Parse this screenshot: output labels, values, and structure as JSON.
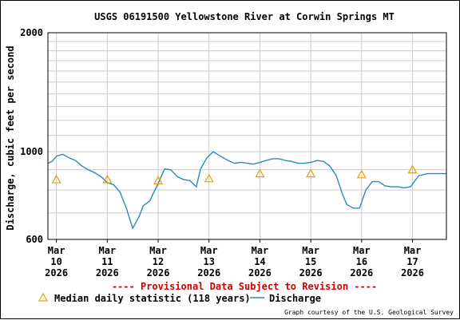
{
  "chart_data": {
    "type": "line",
    "title": "USGS 06191500 Yellowstone River at Corwin Springs MT",
    "ylabel": "Discharge, cubic feet per second",
    "xlabel": "",
    "y_scale": "log",
    "ylim": [
      600,
      2000
    ],
    "y_tick_labels": [
      "2000",
      "1000",
      "600"
    ],
    "x_tick_labels": [
      {
        "day": "Mar",
        "num": "10",
        "year": "2026"
      },
      {
        "day": "Mar",
        "num": "11",
        "year": "2026"
      },
      {
        "day": "Mar",
        "num": "12",
        "year": "2026"
      },
      {
        "day": "Mar",
        "num": "13",
        "year": "2026"
      },
      {
        "day": "Mar",
        "num": "14",
        "year": "2026"
      },
      {
        "day": "Mar",
        "num": "15",
        "year": "2026"
      },
      {
        "day": "Mar",
        "num": "16",
        "year": "2026"
      },
      {
        "day": "Mar",
        "num": "17",
        "year": "2026"
      }
    ],
    "xlim": [
      "2026-03-09T20:00",
      "2026-03-17T16:00"
    ],
    "grid": true,
    "series": [
      {
        "name": "Discharge",
        "color": "#2a88c0",
        "x": [
          "2026-03-09T20:00",
          "2026-03-09T22:00",
          "2026-03-10T00:00",
          "2026-03-10T03:00",
          "2026-03-10T06:00",
          "2026-03-10T09:00",
          "2026-03-10T12:00",
          "2026-03-10T15:00",
          "2026-03-10T18:00",
          "2026-03-10T21:00",
          "2026-03-11T00:00",
          "2026-03-11T03:00",
          "2026-03-11T06:00",
          "2026-03-11T09:00",
          "2026-03-11T12:00",
          "2026-03-11T15:00",
          "2026-03-11T17:00",
          "2026-03-11T20:00",
          "2026-03-11T22:00",
          "2026-03-12T00:00",
          "2026-03-12T03:00",
          "2026-03-12T06:00",
          "2026-03-12T09:00",
          "2026-03-12T12:00",
          "2026-03-12T15:00",
          "2026-03-12T18:00",
          "2026-03-12T20:00",
          "2026-03-12T23:00",
          "2026-03-13T02:00",
          "2026-03-13T06:00",
          "2026-03-13T09:00",
          "2026-03-13T12:00",
          "2026-03-13T15:00",
          "2026-03-13T18:00",
          "2026-03-13T21:00",
          "2026-03-14T00:00",
          "2026-03-14T03:00",
          "2026-03-14T06:00",
          "2026-03-14T09:00",
          "2026-03-14T12:00",
          "2026-03-14T15:00",
          "2026-03-14T18:00",
          "2026-03-14T21:00",
          "2026-03-15T00:00",
          "2026-03-15T03:00",
          "2026-03-15T06:00",
          "2026-03-15T09:00",
          "2026-03-15T12:00",
          "2026-03-15T15:00",
          "2026-03-15T17:00",
          "2026-03-15T20:00",
          "2026-03-15T23:00",
          "2026-03-16T02:00",
          "2026-03-16T05:00",
          "2026-03-16T08:00",
          "2026-03-16T11:00",
          "2026-03-16T14:00",
          "2026-03-16T17:00",
          "2026-03-16T20:00",
          "2026-03-16T23:00",
          "2026-03-17T03:00",
          "2026-03-17T07:00",
          "2026-03-17T12:00",
          "2026-03-17T16:00"
        ],
        "values": [
          935,
          945,
          975,
          985,
          965,
          950,
          920,
          900,
          885,
          865,
          835,
          825,
          790,
          720,
          640,
          685,
          730,
          750,
          790,
          830,
          905,
          900,
          865,
          850,
          845,
          815,
          905,
          965,
          1000,
          970,
          950,
          935,
          940,
          935,
          930,
          940,
          950,
          960,
          960,
          950,
          945,
          935,
          935,
          940,
          950,
          945,
          920,
          870,
          780,
          735,
          720,
          720,
          800,
          840,
          840,
          820,
          815,
          815,
          810,
          815,
          870,
          880,
          880,
          880
        ]
      },
      {
        "name": "Median daily statistic (118 years)",
        "color": "#e8a000",
        "marker": "triangle",
        "x": [
          "2026-03-10T00:00",
          "2026-03-11T00:00",
          "2026-03-12T00:00",
          "2026-03-13T00:00",
          "2026-03-14T00:00",
          "2026-03-15T00:00",
          "2026-03-16T00:00",
          "2026-03-17T00:00"
        ],
        "values": [
          850,
          850,
          845,
          855,
          880,
          880,
          875,
          900
        ]
      }
    ],
    "legend": "bottom"
  },
  "notice": "---- Provisional Data Subject to Revision ----",
  "notice_color": "#cc0000",
  "courtesy": "Graph courtesy of the U.S. Geological Survey"
}
